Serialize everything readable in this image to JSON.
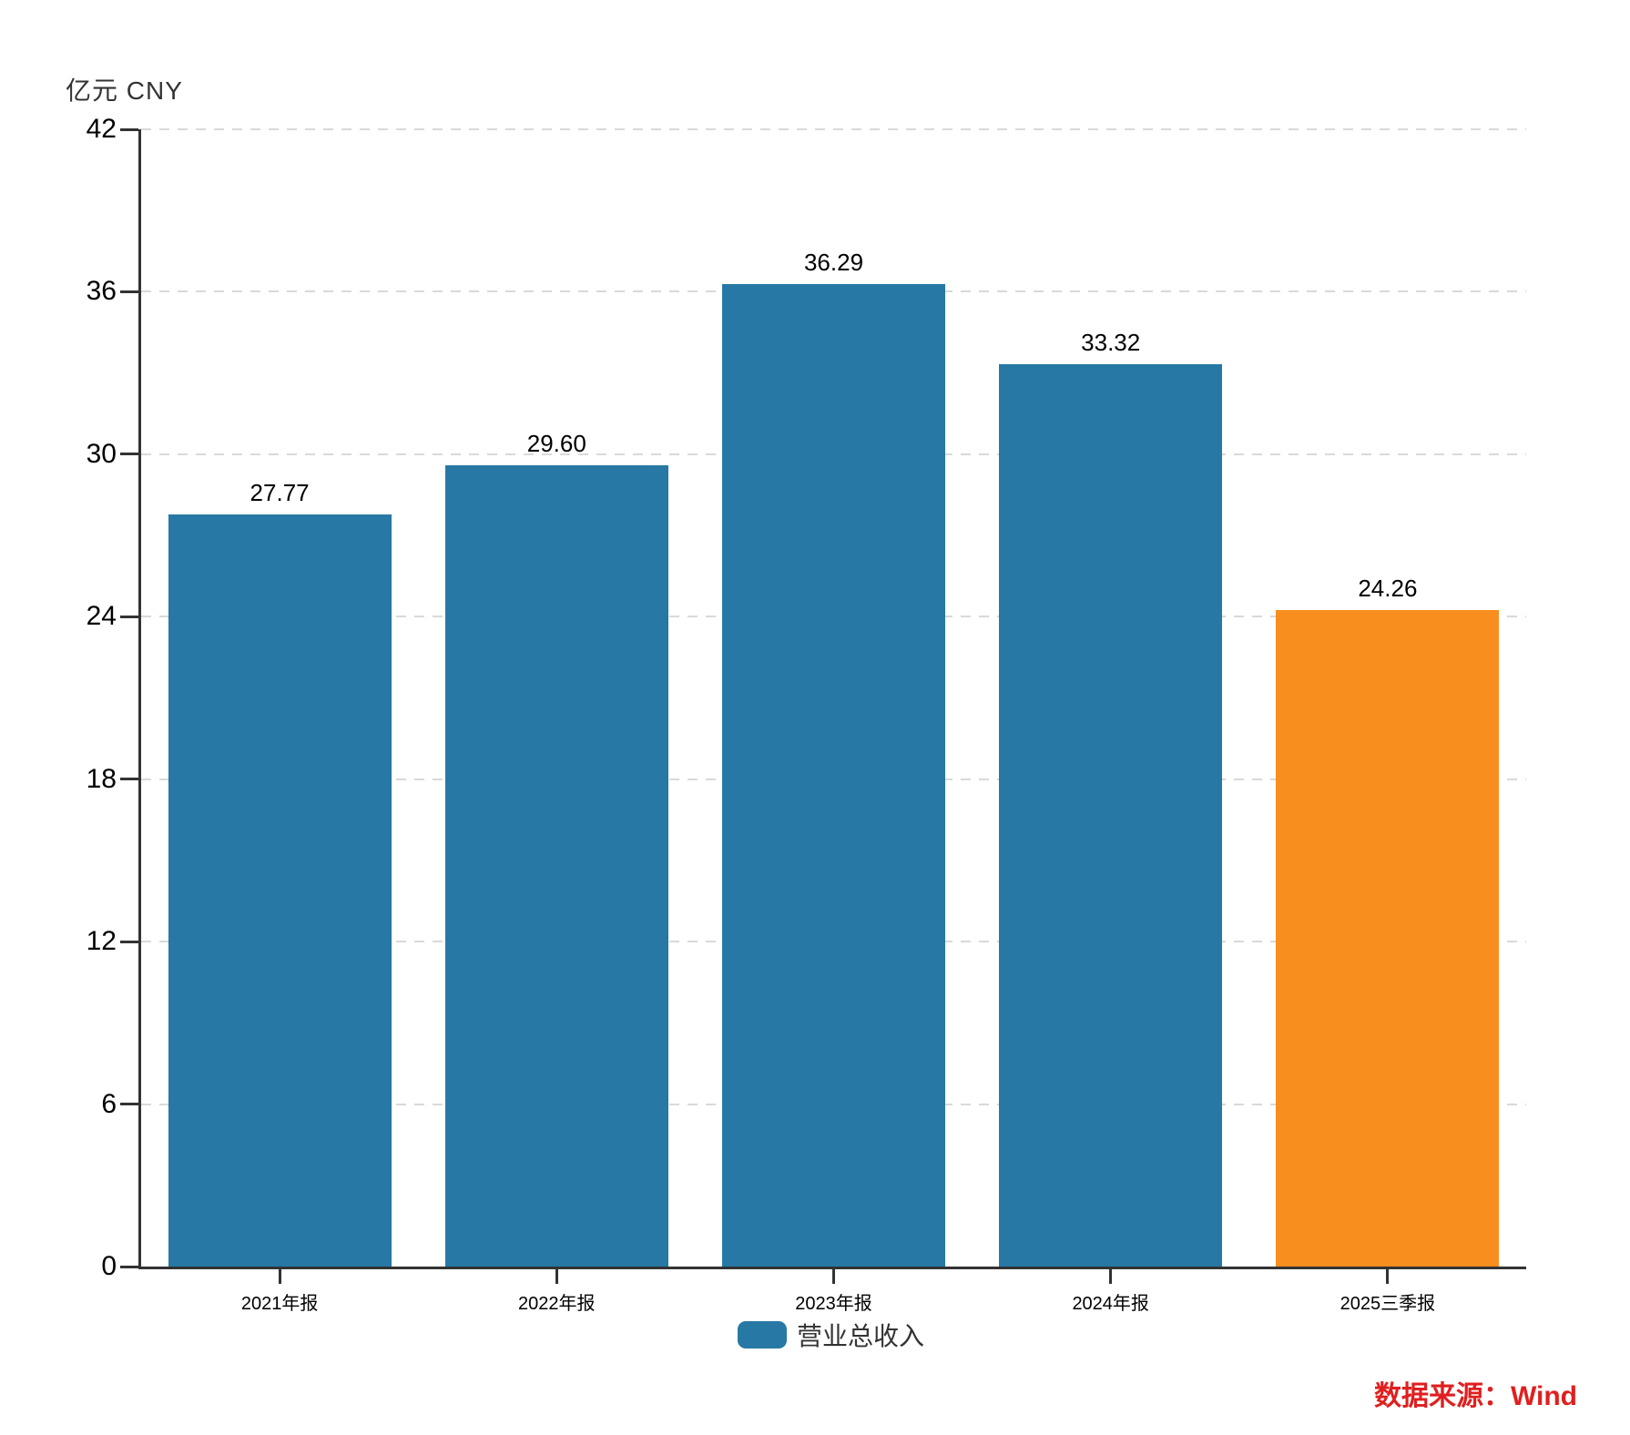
{
  "chart_data": {
    "type": "bar",
    "y_axis_title": "亿元 CNY",
    "categories": [
      "2021年报",
      "2022年报",
      "2023年报",
      "2024年报",
      "2025三季报"
    ],
    "values": [
      27.77,
      29.6,
      36.29,
      33.32,
      24.26
    ],
    "value_labels": [
      "27.77",
      "29.60",
      "36.29",
      "33.32",
      "24.26"
    ],
    "bar_colors": [
      "#2778A5",
      "#2778A5",
      "#2778A5",
      "#2778A5",
      "#F78E1E"
    ],
    "ylim": [
      0,
      42
    ],
    "y_ticks": [
      0,
      6,
      12,
      18,
      24,
      30,
      36,
      42
    ],
    "grid": "horizontal-dashed",
    "legend_position": "bottom-center",
    "legend": {
      "label": "营业总收入",
      "color": "#2778A5"
    },
    "source_label": "数据来源：Wind",
    "colors": {
      "primary_blue": "#2778A5",
      "highlight_orange": "#F78E1E",
      "axis": "#333333",
      "gridline": "#d9d9d9",
      "source_red": "#e01f1f"
    }
  }
}
